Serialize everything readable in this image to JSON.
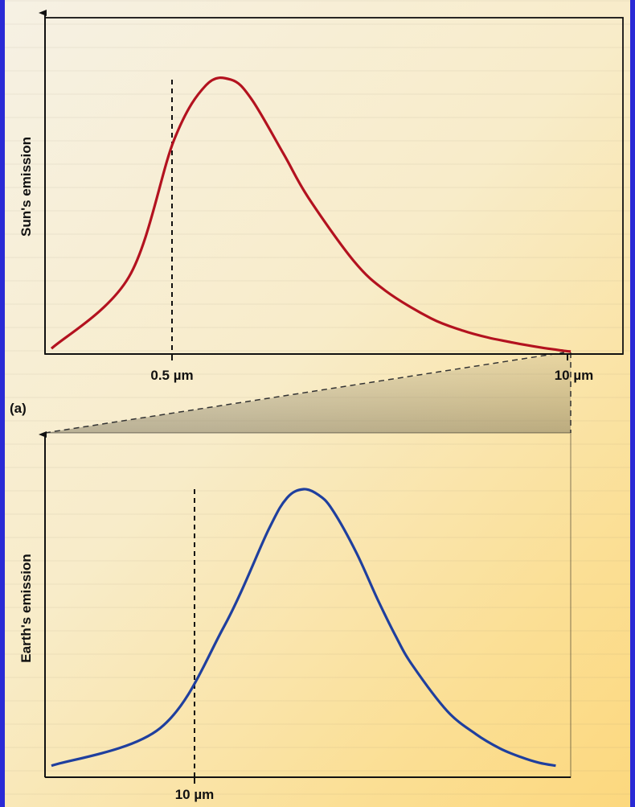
{
  "colors": {
    "background": "#2a2ad6",
    "panel": "#fbe2a0",
    "sun_curve": "#b3121f",
    "earth_curve": "#1f3f9e",
    "axis": "#111111"
  },
  "chart_data": [
    {
      "type": "line",
      "panel_label": "(a)",
      "ylabel": "Sun's emission",
      "xlabel": "",
      "tick_labels": [
        "0.5 µm",
        "10 µm"
      ],
      "ticks_um": [
        0.5,
        10
      ],
      "peak_um": 0.5,
      "peak_marker": "dashed vertical line",
      "x_um": [
        0.1,
        0.2,
        0.3,
        0.4,
        0.5,
        0.6,
        0.8,
        1.0,
        1.5,
        2,
        3,
        4,
        5,
        6,
        7,
        8,
        9,
        10,
        10.5
      ],
      "y_relative": [
        0.02,
        0.28,
        0.78,
        0.98,
        1.0,
        0.93,
        0.73,
        0.57,
        0.34,
        0.23,
        0.13,
        0.085,
        0.06,
        0.045,
        0.033,
        0.024,
        0.017,
        0.011,
        0.009
      ],
      "grid": false
    },
    {
      "type": "line",
      "panel_label": "",
      "ylabel": "Earth's emission",
      "xlabel": "",
      "tick_labels": [
        "10 µm"
      ],
      "ticks_um": [
        10
      ],
      "peak_um": 10,
      "peak_marker": "dashed vertical line",
      "x_um": [
        2,
        4,
        6,
        8,
        9,
        10,
        11,
        12,
        14,
        16,
        18,
        20,
        25,
        30,
        35,
        40,
        45,
        50
      ],
      "y_relative": [
        0.04,
        0.17,
        0.52,
        0.86,
        0.97,
        1.0,
        0.98,
        0.93,
        0.78,
        0.62,
        0.49,
        0.39,
        0.23,
        0.15,
        0.1,
        0.07,
        0.05,
        0.04
      ],
      "grid": false,
      "zoom_of_panel": 0
    }
  ]
}
